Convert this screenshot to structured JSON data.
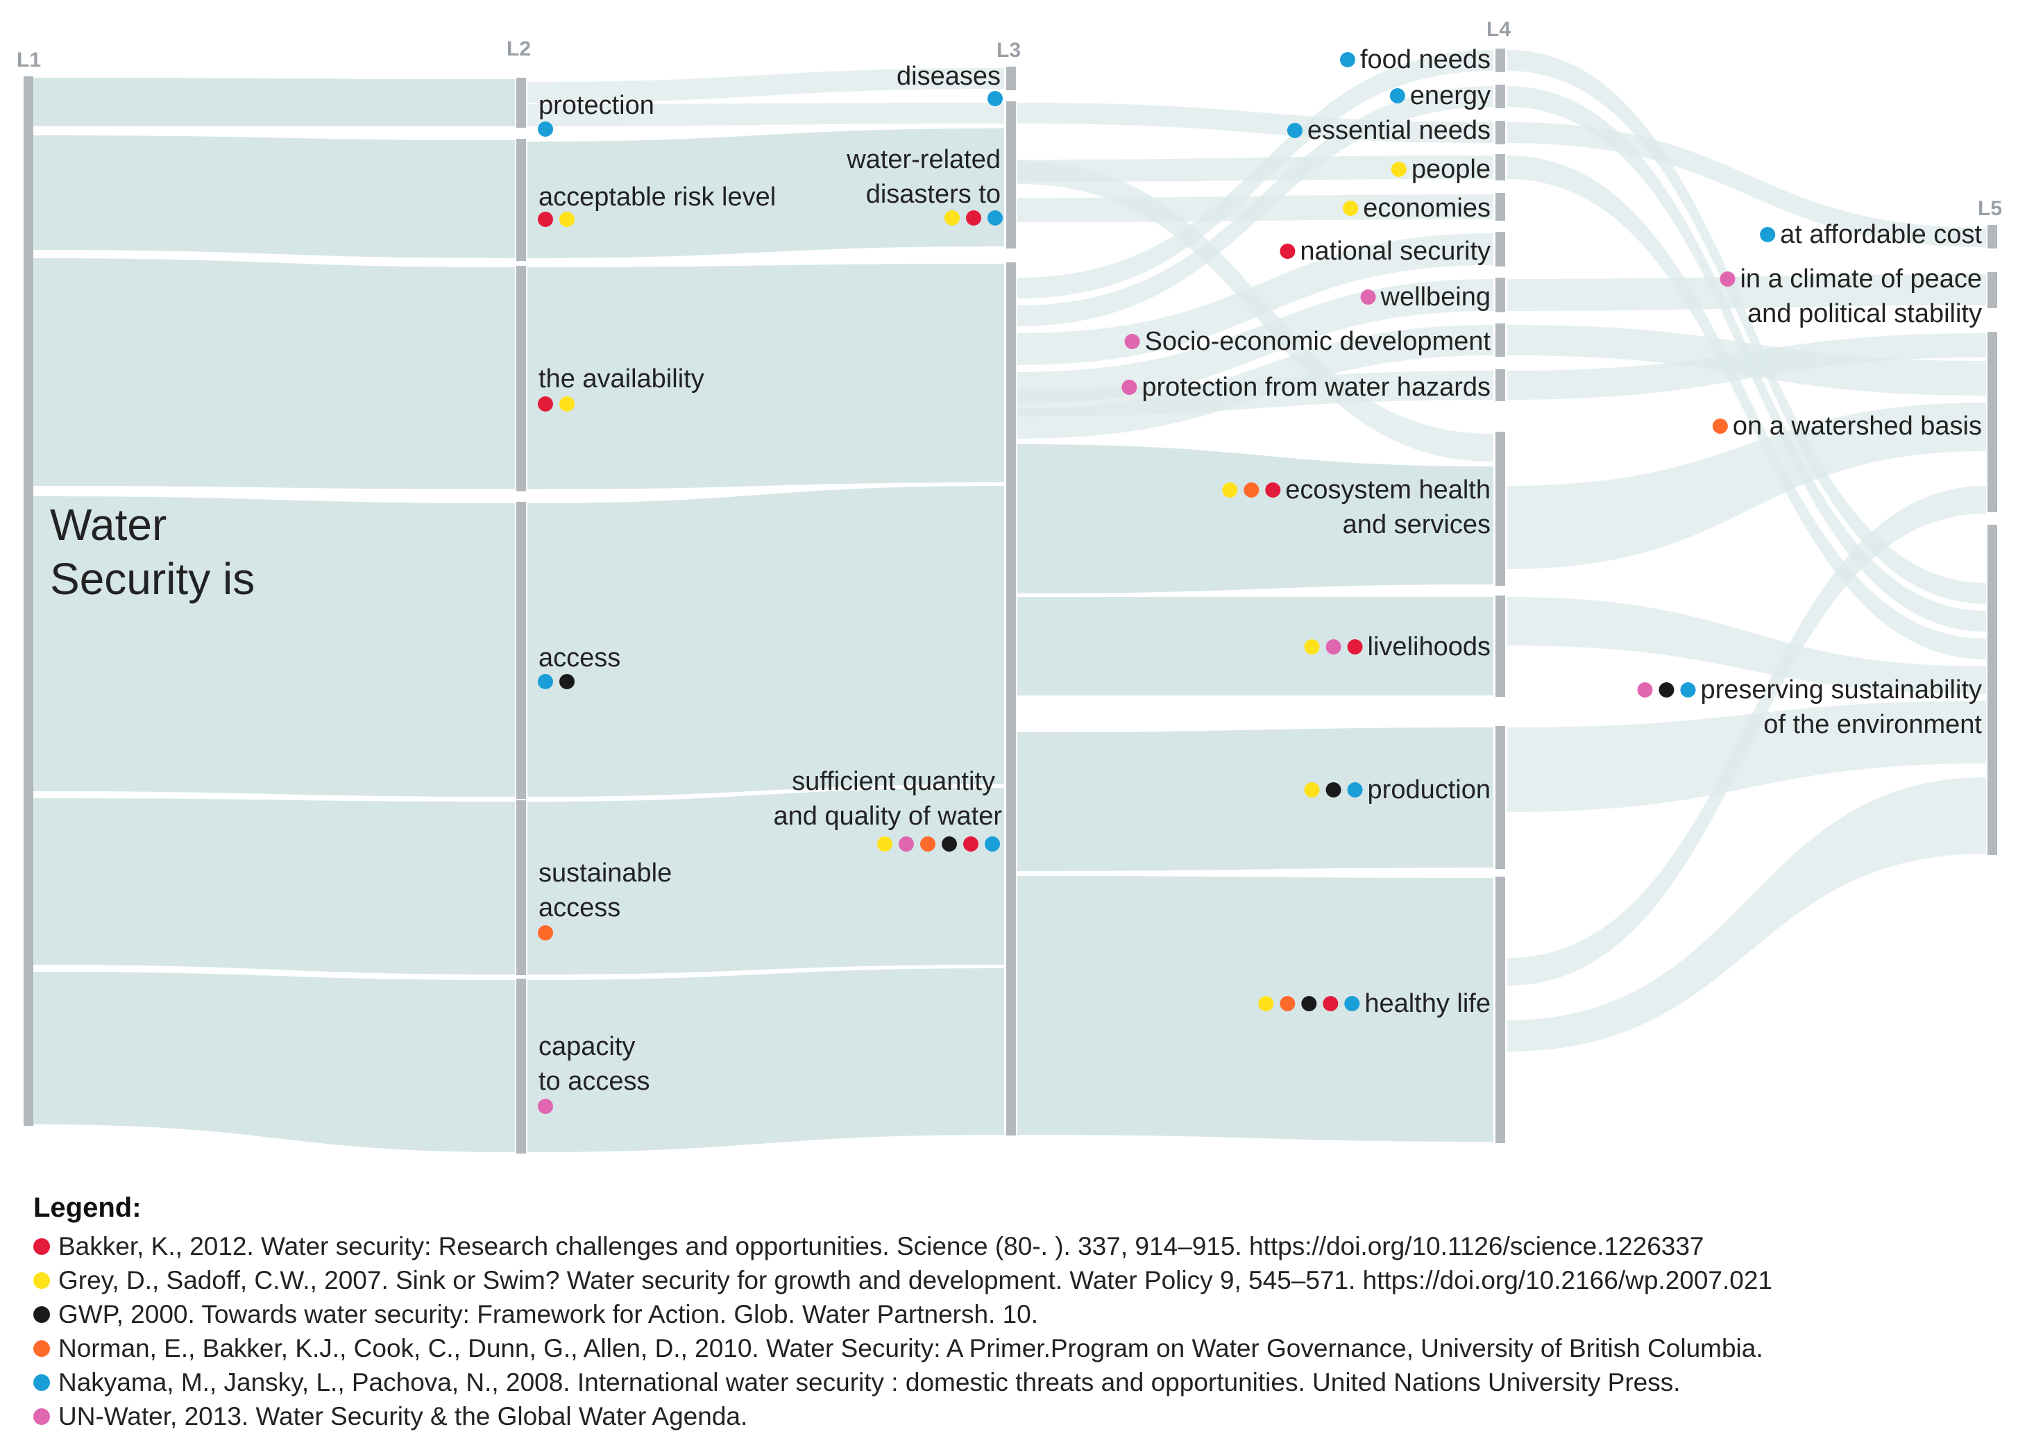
{
  "colors": {
    "bakker": "#e41a3a",
    "grey": "#ffe21a",
    "gwp": "#1a1a1a",
    "norman": "#ff6a2a",
    "nakyama": "#1a9ed8",
    "unwater": "#e066b0"
  },
  "levels": {
    "l1": "L1",
    "l2": "L2",
    "l3": "L3",
    "l4": "L4",
    "l5": "L5"
  },
  "l1": {
    "line1": "Water",
    "line2": "Security is"
  },
  "l2": {
    "protection": {
      "text": "protection",
      "dots": [
        "nakyama"
      ]
    },
    "acceptable": {
      "text": "acceptable risk level",
      "dots": [
        "bakker",
        "grey"
      ]
    },
    "availability": {
      "text": "the availability",
      "dots": [
        "bakker",
        "grey"
      ]
    },
    "access": {
      "text": "access",
      "dots": [
        "nakyama",
        "gwp"
      ]
    },
    "sustainable": {
      "line1": "sustainable",
      "line2": "access",
      "dots": [
        "norman"
      ]
    },
    "capacity": {
      "line1": "capacity",
      "line2": "to access",
      "dots": [
        "unwater"
      ]
    }
  },
  "l3": {
    "diseases": {
      "text": "diseases",
      "dots": [
        "nakyama"
      ]
    },
    "disasters": {
      "line1": "water-related",
      "line2": "disasters to",
      "dots": [
        "grey",
        "bakker",
        "nakyama"
      ]
    },
    "sufficient": {
      "line1": "sufficient quantity",
      "line2": "and quality of water",
      "dots": [
        "grey",
        "unwater",
        "norman",
        "gwp",
        "bakker",
        "nakyama"
      ]
    }
  },
  "l4": {
    "food": {
      "text": "food needs",
      "dots": [
        "nakyama"
      ]
    },
    "energy": {
      "text": "energy",
      "dots": [
        "nakyama"
      ]
    },
    "essential": {
      "text": "essential needs",
      "dots": [
        "nakyama"
      ]
    },
    "people": {
      "text": "people",
      "dots": [
        "grey"
      ]
    },
    "economies": {
      "text": "economies",
      "dots": [
        "grey"
      ]
    },
    "national": {
      "text": "national security",
      "dots": [
        "bakker"
      ]
    },
    "wellbeing": {
      "text": "wellbeing",
      "dots": [
        "unwater"
      ]
    },
    "socio": {
      "text": "Socio-economic development",
      "dots": [
        "unwater"
      ]
    },
    "hazards": {
      "text": "protection from water hazards",
      "dots": [
        "unwater"
      ]
    },
    "ecosystem": {
      "line1": "ecosystem health",
      "line2": "and services",
      "dots": [
        "grey",
        "norman",
        "bakker"
      ]
    },
    "livelihoods": {
      "text": "livelihoods",
      "dots": [
        "grey",
        "unwater",
        "bakker"
      ]
    },
    "production": {
      "text": "production",
      "dots": [
        "grey",
        "gwp",
        "nakyama"
      ]
    },
    "healthy": {
      "text": "healthy life",
      "dots": [
        "grey",
        "norman",
        "gwp",
        "bakker",
        "nakyama"
      ]
    }
  },
  "l5": {
    "affordable": {
      "text": "at affordable cost",
      "dots": [
        "nakyama"
      ]
    },
    "peace": {
      "line1": "in a climate of peace",
      "line2": "and political stability",
      "dots": [
        "unwater"
      ]
    },
    "watershed": {
      "text": "on a watershed basis",
      "dots": [
        "norman"
      ]
    },
    "preserving": {
      "line1": "preserving sustainability",
      "line2": "of the environment",
      "dots": [
        "unwater",
        "gwp",
        "nakyama"
      ]
    }
  },
  "legend": {
    "title": "Legend:",
    "entries": [
      {
        "color": "#e41a3a",
        "text": "Bakker, K., 2012. Water security: Research challenges and opportunities. Science (80-. ). 337, 914–915. https://doi.org/10.1126/science.1226337"
      },
      {
        "color": "#ffe21a",
        "text": "Grey, D., Sadoff, C.W., 2007. Sink or Swim? Water security for growth and development. Water Policy 9, 545–571. https://doi.org/10.2166/wp.2007.021"
      },
      {
        "color": "#1a1a1a",
        "text": "GWP, 2000. Towards water security: Framework for Action. Glob. Water Partnersh. 10."
      },
      {
        "color": "#ff6a2a",
        "text": "Norman, E., Bakker, K.J., Cook, C., Dunn, G., Allen, D., 2010. Water Security: A Primer.Program on Water Governance, University of British Columbia."
      },
      {
        "color": "#1a9ed8",
        "text": "Nakyama, M., Jansky, L., Pachova, N., 2008. International water security : domestic threats and opportunities. United Nations University Press."
      },
      {
        "color": "#e066b0",
        "text": "UN-Water, 2013. Water Security & the Global Water Agenda."
      }
    ]
  }
}
